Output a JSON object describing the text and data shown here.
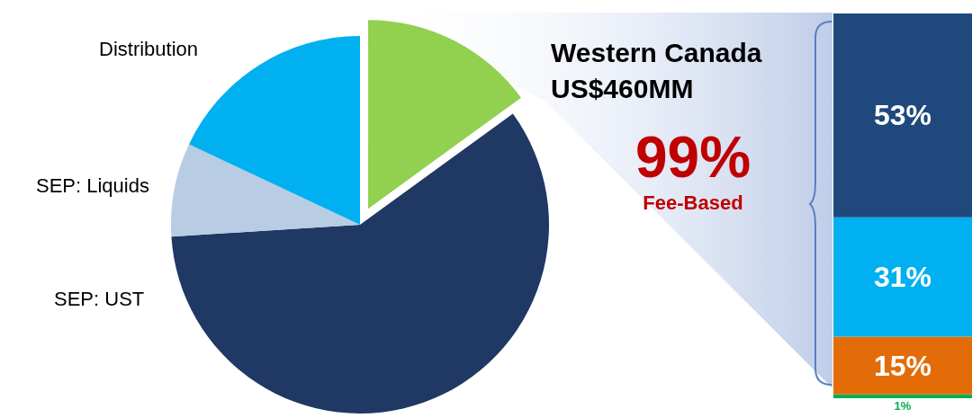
{
  "chart_data": [
    {
      "type": "pie",
      "categories": [
        null,
        "SEP: UST",
        "SEP: Liquids",
        "Distribution"
      ],
      "values": [
        15,
        59,
        8,
        18
      ],
      "colors": [
        "#92d050",
        "#1f3864",
        "#b8cce4",
        "#00b0f0"
      ],
      "annotations": [
        "Western Canada",
        "US$460MM",
        "99%",
        "Fee-Based"
      ]
    },
    {
      "type": "bar",
      "stacked": true,
      "categories": [
        null
      ],
      "series": [
        {
          "color": "#00b050",
          "values": [
            1
          ],
          "value_labels": [
            "1%"
          ]
        },
        {
          "color": "#e36c09",
          "values": [
            15
          ],
          "value_labels": [
            "15%"
          ]
        },
        {
          "color": "#00b0f0",
          "values": [
            31
          ],
          "value_labels": [
            "31%"
          ]
        },
        {
          "color": "#1f497d",
          "values": [
            53
          ],
          "value_labels": [
            "53%"
          ]
        }
      ]
    }
  ]
}
